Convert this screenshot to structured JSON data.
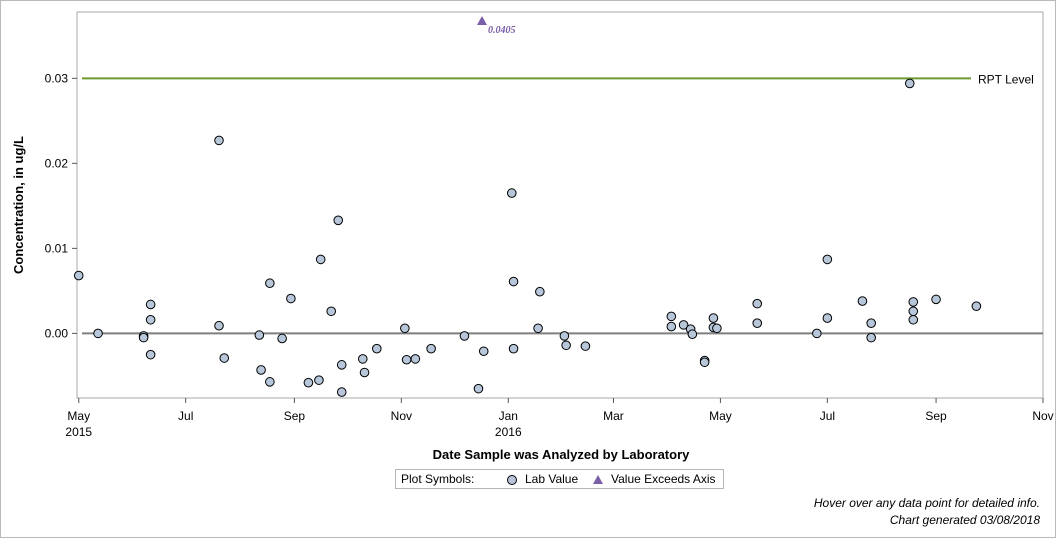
{
  "chart_data": {
    "type": "scatter",
    "xlabel": "Date Sample was Analyzed by Laboratory",
    "ylabel": "Concentration, in ug/L",
    "x_axis_type": "date",
    "xlim": [
      "2015-04-30",
      "2016-11-01"
    ],
    "ylim": [
      -0.0076,
      0.0378
    ],
    "y_ticks": [
      "0.00",
      "0.01",
      "0.02",
      "0.03"
    ],
    "x_ticks": [
      {
        "date": "2015-05-01",
        "label": "May",
        "sub": "2015"
      },
      {
        "date": "2015-07-01",
        "label": "Jul",
        "sub": ""
      },
      {
        "date": "2015-09-01",
        "label": "Sep",
        "sub": ""
      },
      {
        "date": "2015-11-01",
        "label": "Nov",
        "sub": ""
      },
      {
        "date": "2016-01-01",
        "label": "Jan",
        "sub": "2016"
      },
      {
        "date": "2016-03-01",
        "label": "Mar",
        "sub": ""
      },
      {
        "date": "2016-05-01",
        "label": "May",
        "sub": ""
      },
      {
        "date": "2016-07-01",
        "label": "Jul",
        "sub": ""
      },
      {
        "date": "2016-09-01",
        "label": "Sep",
        "sub": ""
      },
      {
        "date": "2016-11-01",
        "label": "Nov",
        "sub": ""
      }
    ],
    "reference_lines": [
      {
        "label": "RPT Level",
        "y": 0.03,
        "color": "#6b9a2e"
      },
      {
        "label": "",
        "y": 0.0,
        "color": "#7f7f7f"
      }
    ],
    "series": [
      {
        "name": "Lab Value",
        "marker": "circle",
        "fill": "#b7c7d9",
        "points": [
          [
            "2015-05-01",
            0.0068
          ],
          [
            "2015-05-12",
            0.0
          ],
          [
            "2015-06-07",
            -0.0003
          ],
          [
            "2015-06-07",
            -0.0005
          ],
          [
            "2015-06-11",
            0.0034
          ],
          [
            "2015-06-11",
            0.0016
          ],
          [
            "2015-06-11",
            -0.0025
          ],
          [
            "2015-07-20",
            0.0227
          ],
          [
            "2015-07-20",
            0.0009
          ],
          [
            "2015-07-23",
            -0.0029
          ],
          [
            "2015-08-12",
            -0.0002
          ],
          [
            "2015-08-13",
            -0.0043
          ],
          [
            "2015-08-18",
            0.0059
          ],
          [
            "2015-08-18",
            -0.0057
          ],
          [
            "2015-08-25",
            -0.0006
          ],
          [
            "2015-08-30",
            0.0041
          ],
          [
            "2015-09-09",
            -0.0058
          ],
          [
            "2015-09-15",
            -0.0055
          ],
          [
            "2015-09-16",
            0.0087
          ],
          [
            "2015-09-22",
            0.0026
          ],
          [
            "2015-09-26",
            0.0133
          ],
          [
            "2015-09-28",
            -0.0037
          ],
          [
            "2015-09-28",
            -0.0069
          ],
          [
            "2015-10-10",
            -0.003
          ],
          [
            "2015-10-11",
            -0.0046
          ],
          [
            "2015-10-18",
            -0.0018
          ],
          [
            "2015-11-03",
            0.0006
          ],
          [
            "2015-11-04",
            -0.0031
          ],
          [
            "2015-11-09",
            -0.003
          ],
          [
            "2015-11-18",
            -0.0018
          ],
          [
            "2015-12-07",
            -0.0003
          ],
          [
            "2015-12-15",
            -0.0065
          ],
          [
            "2015-12-18",
            -0.0021
          ],
          [
            "2016-01-03",
            0.0165
          ],
          [
            "2016-01-04",
            0.0061
          ],
          [
            "2016-01-04",
            -0.0018
          ],
          [
            "2016-01-18",
            0.0006
          ],
          [
            "2016-01-19",
            0.0049
          ],
          [
            "2016-02-02",
            -0.0003
          ],
          [
            "2016-02-03",
            -0.0014
          ],
          [
            "2016-02-14",
            -0.0015
          ],
          [
            "2016-04-03",
            0.002
          ],
          [
            "2016-04-03",
            0.0008
          ],
          [
            "2016-04-10",
            0.001
          ],
          [
            "2016-04-14",
            0.0005
          ],
          [
            "2016-04-15",
            -0.0001
          ],
          [
            "2016-04-22",
            -0.0032
          ],
          [
            "2016-04-22",
            -0.0034
          ],
          [
            "2016-04-27",
            0.0018
          ],
          [
            "2016-04-27",
            0.0007
          ],
          [
            "2016-04-29",
            0.0006
          ],
          [
            "2016-05-22",
            0.0035
          ],
          [
            "2016-05-22",
            0.0012
          ],
          [
            "2016-06-25",
            0.0
          ],
          [
            "2016-07-01",
            0.0018
          ],
          [
            "2016-07-01",
            0.0087
          ],
          [
            "2016-07-21",
            0.0038
          ],
          [
            "2016-07-26",
            0.0012
          ],
          [
            "2016-07-26",
            -0.0005
          ],
          [
            "2016-08-17",
            0.0294
          ],
          [
            "2016-08-19",
            0.0037
          ],
          [
            "2016-08-19",
            0.0026
          ],
          [
            "2016-08-19",
            0.0016
          ],
          [
            "2016-09-01",
            0.004
          ],
          [
            "2016-09-24",
            0.0032
          ]
        ]
      },
      {
        "name": "Value Exceeds Axis",
        "marker": "triangle",
        "fill": "#7a5ea8",
        "points": [
          [
            "2015-12-17",
            0.0405
          ]
        ]
      }
    ],
    "annotations": [
      {
        "text": "0.0405",
        "x": "2015-12-17"
      }
    ],
    "legend": {
      "title": "Plot Symbols:",
      "items": [
        "Lab Value",
        "Value Exceeds Axis"
      ],
      "placement": "bottom-center"
    }
  },
  "footnotes": {
    "hover": "Hover over any data point for detailed info.",
    "generated": "Chart generated 03/08/2018"
  }
}
